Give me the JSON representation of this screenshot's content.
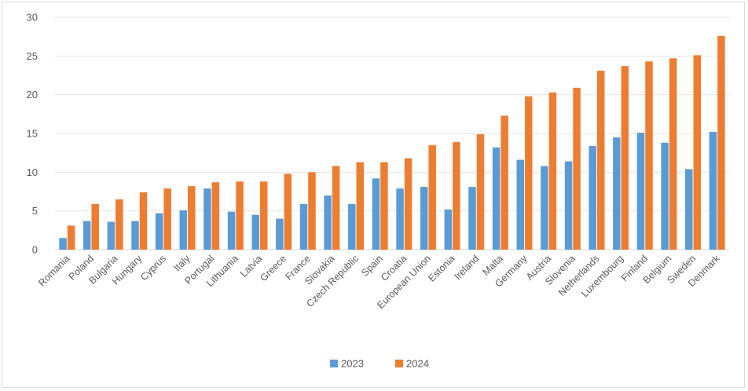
{
  "chart_data": {
    "type": "bar",
    "title": "",
    "xlabel": "",
    "ylabel": "",
    "ylim": [
      0,
      30
    ],
    "yticks": [
      0,
      5,
      10,
      15,
      20,
      25,
      30
    ],
    "grid": "horizontal",
    "legend_position": "bottom",
    "categories": [
      "Romania",
      "Poland",
      "Bulgaria",
      "Hungary",
      "Cyprus",
      "Italy",
      "Portugal",
      "Lithuania",
      "Latvia",
      "Greece",
      "France",
      "Slovakia",
      "Czech Republic",
      "Spain",
      "Croatia",
      "European Union",
      "Estonia",
      "Ireland",
      "Malta",
      "Germany",
      "Austria",
      "Slovenia",
      "Netherlands",
      "Luxembourg",
      "Finland",
      "Belgium",
      "Sweden",
      "Denmark"
    ],
    "series": [
      {
        "name": "2023",
        "color": "#5b9bd5",
        "values": [
          1.5,
          3.7,
          3.6,
          3.7,
          4.7,
          5.1,
          7.9,
          4.9,
          4.5,
          4.0,
          5.9,
          7.0,
          5.9,
          9.2,
          7.9,
          8.1,
          5.2,
          8.1,
          13.2,
          11.6,
          10.8,
          11.4,
          13.4,
          14.5,
          15.1,
          13.8,
          10.4,
          15.2
        ]
      },
      {
        "name": "2024",
        "color": "#ed7d31",
        "values": [
          3.1,
          5.9,
          6.5,
          7.4,
          7.9,
          8.2,
          8.7,
          8.8,
          8.8,
          9.8,
          10.0,
          10.8,
          11.3,
          11.3,
          11.8,
          13.5,
          13.9,
          14.9,
          17.3,
          19.8,
          20.3,
          20.9,
          23.1,
          23.7,
          24.3,
          24.7,
          25.1,
          27.6
        ]
      }
    ]
  }
}
